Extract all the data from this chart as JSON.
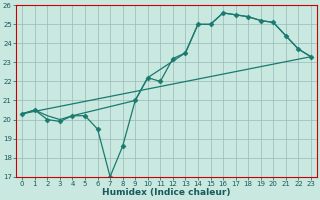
{
  "xlabel": "Humidex (Indice chaleur)",
  "ylabel": "",
  "xlim": [
    -0.5,
    23.5
  ],
  "ylim": [
    17,
    26
  ],
  "xticks": [
    0,
    1,
    2,
    3,
    4,
    5,
    6,
    7,
    8,
    9,
    10,
    11,
    12,
    13,
    14,
    15,
    16,
    17,
    18,
    19,
    20,
    21,
    22,
    23
  ],
  "yticks": [
    17,
    18,
    19,
    20,
    21,
    22,
    23,
    24,
    25,
    26
  ],
  "bg_color": "#c8e8e0",
  "line_color": "#1a7a6e",
  "grid_color": "#9ababa",
  "spine_color": "#cc0000",
  "series": [
    {
      "x": [
        0,
        1,
        2,
        3,
        4,
        5,
        6,
        7,
        8,
        9,
        10,
        11,
        12,
        13,
        14,
        15,
        16,
        17,
        18,
        19,
        20,
        21,
        22,
        23
      ],
      "y": [
        20.3,
        20.5,
        20.0,
        19.9,
        20.2,
        20.2,
        19.5,
        17.0,
        18.6,
        21.0,
        22.2,
        22.0,
        23.2,
        23.5,
        25.0,
        25.0,
        25.6,
        25.5,
        25.4,
        25.2,
        25.1,
        24.4,
        23.7,
        23.3
      ],
      "marker": "D",
      "markersize": 2.5
    },
    {
      "x": [
        0,
        1,
        2,
        3,
        4,
        9,
        10,
        13,
        14,
        15,
        16,
        17,
        18,
        19,
        20,
        21,
        22,
        23
      ],
      "y": [
        20.3,
        20.5,
        20.2,
        20.0,
        20.2,
        21.0,
        22.2,
        23.5,
        25.0,
        25.0,
        25.6,
        25.5,
        25.4,
        25.2,
        25.1,
        24.4,
        23.7,
        23.3
      ],
      "marker": null,
      "markersize": 0
    },
    {
      "x": [
        0,
        23
      ],
      "y": [
        20.3,
        23.3
      ],
      "marker": null,
      "markersize": 0
    }
  ]
}
